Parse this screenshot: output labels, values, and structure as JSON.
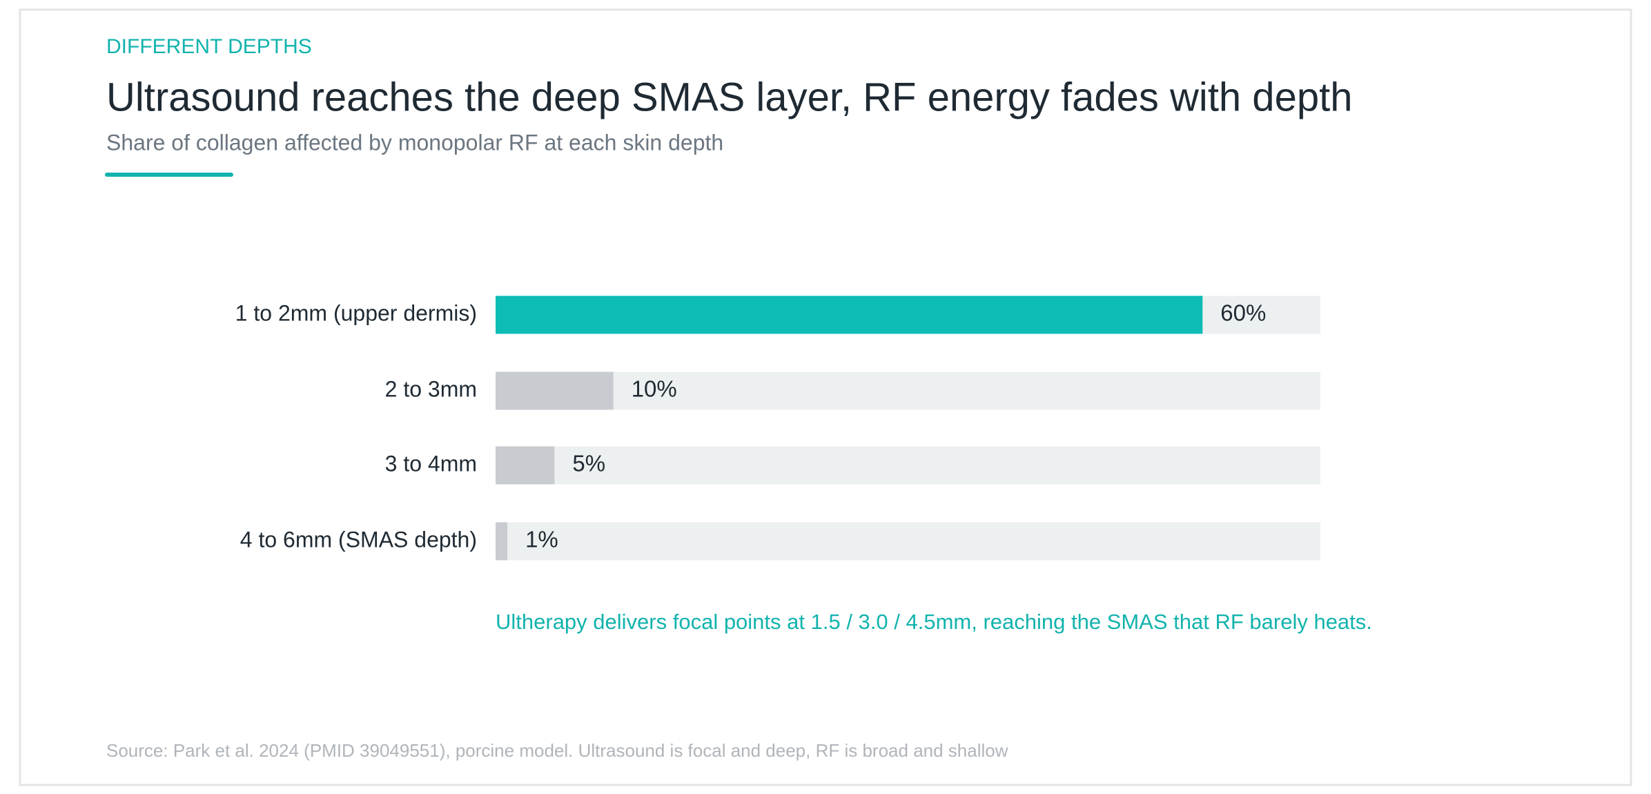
{
  "chart_data": {
    "type": "bar",
    "orientation": "horizontal",
    "eyebrow": "DIFFERENT DEPTHS",
    "title": "Ultrasound reaches the deep SMAS layer, RF energy fades with depth",
    "subtitle": "Share of collagen affected by monopolar RF at each skin depth",
    "categories": [
      "1 to 2mm (upper dermis)",
      "2 to 3mm",
      "3 to 4mm",
      "4 to 6mm (SMAS depth)"
    ],
    "values": [
      60,
      10,
      5,
      1
    ],
    "value_labels": [
      "60%",
      "10%",
      "5%",
      "1%"
    ],
    "colors": [
      "#0cbcb5",
      "#c8ccd0",
      "#c8ccd0",
      "#c8ccd0"
    ],
    "track_color": "#edf0f0",
    "xlim": [
      0,
      70
    ],
    "annotation": "Ultherapy delivers focal points at 1.5 / 3.0 / 4.5mm, reaching the SMAS that RF barely heats.",
    "source": "Source: Park et al. 2024 (PMID 39049551), porcine model. Ultrasound is focal and deep, RF is broad and shallow"
  }
}
